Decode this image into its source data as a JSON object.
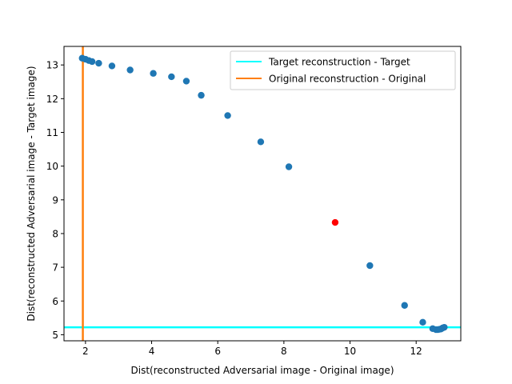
{
  "chart_data": {
    "type": "scatter",
    "title": "",
    "xlabel": "Dist(reconstructed Adversarial image - Original image)",
    "ylabel": "Dist(reconstructed Adversarial image - Target image)",
    "xlim": [
      1.35,
      13.35
    ],
    "ylim": [
      4.82,
      13.55
    ],
    "xticks": [
      2,
      4,
      6,
      8,
      10,
      12
    ],
    "yticks": [
      5,
      6,
      7,
      8,
      9,
      10,
      11,
      12,
      13
    ],
    "grid": false,
    "legend_position": "top-right",
    "points": {
      "color": "#1f77b4",
      "x": [
        1.9,
        2.0,
        2.1,
        2.2,
        2.4,
        2.8,
        3.35,
        4.05,
        4.6,
        5.05,
        5.5,
        6.3,
        7.3,
        8.15,
        10.6,
        11.65,
        12.2,
        12.5,
        12.6,
        12.65,
        12.7,
        12.75,
        12.8,
        12.85
      ],
      "y": [
        13.2,
        13.17,
        13.13,
        13.1,
        13.05,
        12.97,
        12.85,
        12.75,
        12.65,
        12.52,
        12.1,
        11.5,
        10.72,
        9.98,
        7.05,
        5.87,
        5.37,
        5.18,
        5.15,
        5.15,
        5.16,
        5.17,
        5.2,
        5.22
      ]
    },
    "highlight_point": {
      "x": 9.55,
      "y": 8.33,
      "color": "#ff0000"
    },
    "reference_lines": [
      {
        "name": "Target reconstruction - Target",
        "orientation": "horizontal",
        "value": 5.22,
        "color": "#00ffff"
      },
      {
        "name": "Original reconstruction - Original",
        "orientation": "vertical",
        "value": 1.92,
        "color": "#ff7f0e"
      }
    ]
  }
}
